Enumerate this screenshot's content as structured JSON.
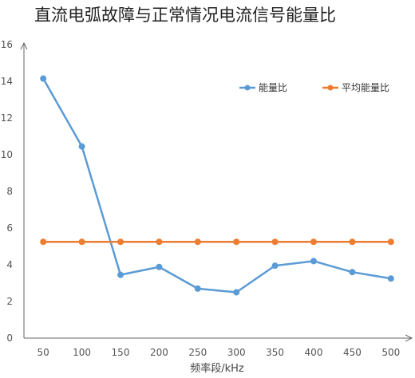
{
  "chart_data": {
    "type": "line",
    "title": "直流电弧故障与正常情况电流信号能量比",
    "xlabel": "频率段/kHz",
    "ylabel": "",
    "categories": [
      "50",
      "100",
      "150",
      "200",
      "250",
      "300",
      "350",
      "400",
      "450",
      "500"
    ],
    "ylim": [
      0,
      16
    ],
    "yticks": [
      0,
      2,
      4,
      6,
      8,
      10,
      12,
      14,
      16
    ],
    "grid": false,
    "legend_position": "top-right",
    "series": [
      {
        "name": "能量比",
        "color": "#5b9bd5",
        "values": [
          14.15,
          10.45,
          3.45,
          3.88,
          2.7,
          2.5,
          3.95,
          4.2,
          3.6,
          3.25
        ]
      },
      {
        "name": "平均能量比",
        "color": "#ed7d31",
        "values": [
          5.25,
          5.25,
          5.25,
          5.25,
          5.25,
          5.25,
          5.25,
          5.25,
          5.25,
          5.25
        ]
      }
    ]
  }
}
